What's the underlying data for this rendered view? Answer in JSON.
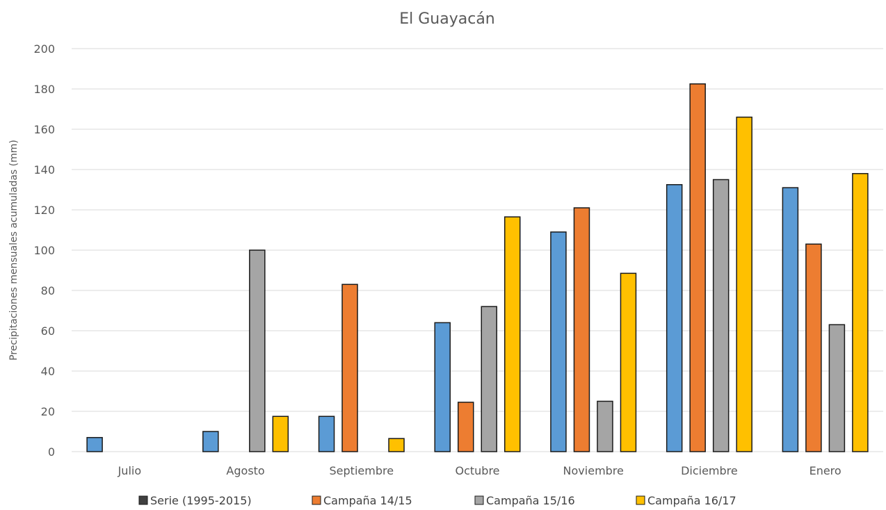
{
  "chart_data": {
    "type": "bar",
    "title": "El Guayacán",
    "xlabel": "",
    "ylabel": "Precipitaciones mensuales acumuladas (mm)",
    "ylim": [
      0,
      200
    ],
    "yticks": [
      0,
      20,
      40,
      60,
      80,
      100,
      120,
      140,
      160,
      180,
      200
    ],
    "grid": true,
    "legend_position": "bottom",
    "categories": [
      "Julio",
      "Agosto",
      "Septiembre",
      "Octubre",
      "Noviembre",
      "Diciembre",
      "Enero"
    ],
    "series": [
      {
        "name": "Serie (1995-2015)",
        "color": "#5b9bd5",
        "legend_color": "#404040",
        "values": [
          7,
          10,
          17.5,
          64,
          109,
          132.5,
          131
        ]
      },
      {
        "name": "Campaña 14/15",
        "color": "#ed7d31",
        "legend_color": "#ed7d31",
        "values": [
          0,
          0,
          83,
          24.5,
          121,
          182.5,
          103
        ]
      },
      {
        "name": "Campaña 15/16",
        "color": "#a5a5a5",
        "legend_color": "#a5a5a5",
        "values": [
          0,
          100,
          0,
          72,
          25,
          135,
          63
        ]
      },
      {
        "name": "Campaña 16/17",
        "color": "#ffc000",
        "legend_color": "#ffc000",
        "values": [
          0,
          17.5,
          6.5,
          116.5,
          88.5,
          166,
          138
        ]
      }
    ]
  }
}
